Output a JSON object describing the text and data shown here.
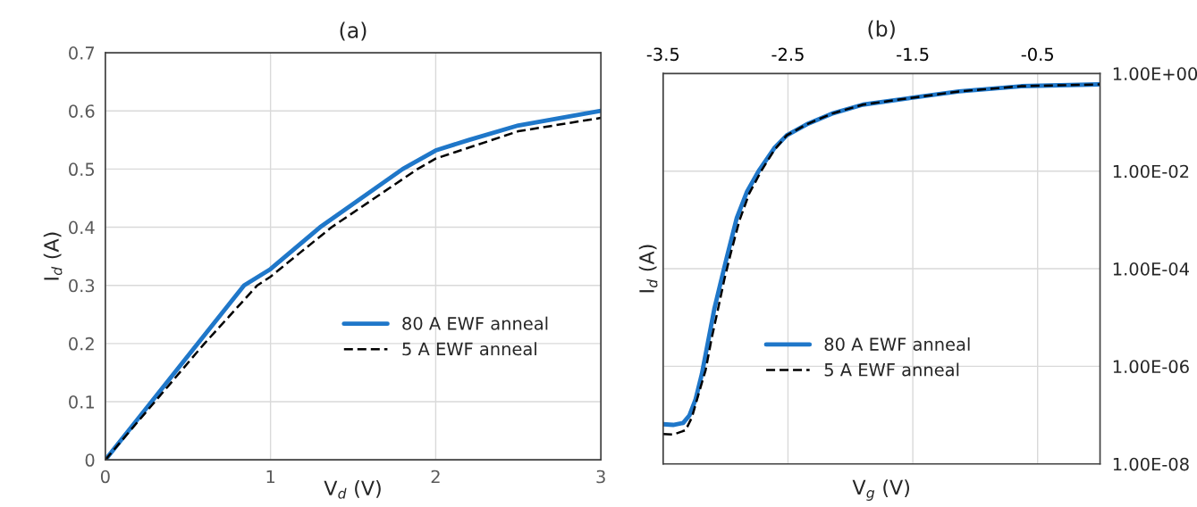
{
  "chart_data": [
    {
      "type": "line",
      "title": "(a)",
      "xlabel": "V$_{d}$ (V)",
      "ylabel": "I$_{d}$ (A)",
      "xlim": [
        0,
        3
      ],
      "xticks": [
        0,
        1,
        2,
        3
      ],
      "ylim": [
        0,
        0.7
      ],
      "yticks": [
        0,
        0.1,
        0.2,
        0.3,
        0.4,
        0.5,
        0.6,
        0.7
      ],
      "grid": true,
      "legend": "center right",
      "series": [
        {
          "name": "80 A EWF anneal",
          "color": "#1f77c9",
          "line_style": "solid",
          "x": [
            0,
            0.28,
            0.56,
            0.84,
            1.0,
            1.3,
            1.8,
            2.0,
            2.2,
            2.5,
            3.0
          ],
          "values": [
            0,
            0.1,
            0.2,
            0.3,
            0.328,
            0.4,
            0.5,
            0.532,
            0.55,
            0.575,
            0.6
          ]
        },
        {
          "name": "5 A EWF anneal",
          "color": "#000000",
          "line_style": "dashed",
          "x": [
            0,
            0.3,
            0.6,
            0.92,
            1.0,
            1.37,
            1.89,
            2.0,
            2.5,
            3.0
          ],
          "values": [
            0,
            0.1,
            0.2,
            0.3,
            0.315,
            0.4,
            0.5,
            0.518,
            0.565,
            0.588
          ]
        }
      ]
    },
    {
      "type": "line",
      "title": "(b)",
      "xlabel": "V$_{g}$ (V)",
      "ylabel": "I$_{d}$ (A)",
      "log": "y",
      "xlim": [
        -3.5,
        0
      ],
      "xticks": [
        -3.5,
        -2.5,
        -1.5,
        -0.5
      ],
      "ylim": [
        1e-08,
        1
      ],
      "yticks": [
        {
          "value": 1e-08,
          "label": "1.00E-08"
        },
        {
          "value": 1e-06,
          "label": "1.00E-06"
        },
        {
          "value": 0.0001,
          "label": "1.00E-04"
        },
        {
          "value": 0.01,
          "label": "1.00E-02"
        },
        {
          "value": 1,
          "label": "1.00E+00"
        }
      ],
      "grid": true,
      "legend": "bottom",
      "series": [
        {
          "name": "80 A EWF anneal",
          "color": "#1f77c9",
          "line_style": "solid",
          "x": [
            -3.5,
            -3.42,
            -3.34,
            -3.29,
            -3.24,
            -3.19,
            -3.14,
            -3.09,
            -3.04,
            -2.99,
            -2.91,
            -2.83,
            -2.73,
            -2.61,
            -2.51,
            -2.35,
            -2.15,
            -1.9,
            -1.5,
            -1.13,
            -0.63,
            0
          ],
          "values": [
            6.5e-08,
            6.3e-08,
            6.9e-08,
            9.8e-08,
            2.1e-07,
            6.9e-07,
            3.2e-06,
            1.5e-05,
            5.1e-05,
            0.00017,
            0.0011,
            0.0037,
            0.0105,
            0.0295,
            0.054,
            0.091,
            0.15,
            0.23,
            0.32,
            0.43,
            0.55,
            0.6
          ]
        },
        {
          "name": "5 A EWF anneal",
          "color": "#000000",
          "line_style": "dashed",
          "x": [
            -3.5,
            -3.42,
            -3.32,
            -3.27,
            -3.22,
            -3.16,
            -3.11,
            -3.06,
            -3.01,
            -2.96,
            -2.89,
            -2.81,
            -2.71,
            -2.61,
            -2.51,
            -2.35,
            -2.15,
            -1.9,
            -1.5,
            -1.13,
            -0.63,
            0
          ],
          "values": [
            4.1e-08,
            4e-08,
            4.9e-08,
            8.9e-08,
            2.5e-07,
            8.3e-07,
            3.9e-06,
            1.5e-05,
            6e-05,
            0.0002,
            0.00095,
            0.0035,
            0.0105,
            0.027,
            0.054,
            0.091,
            0.15,
            0.23,
            0.32,
            0.43,
            0.55,
            0.6
          ]
        }
      ]
    }
  ]
}
